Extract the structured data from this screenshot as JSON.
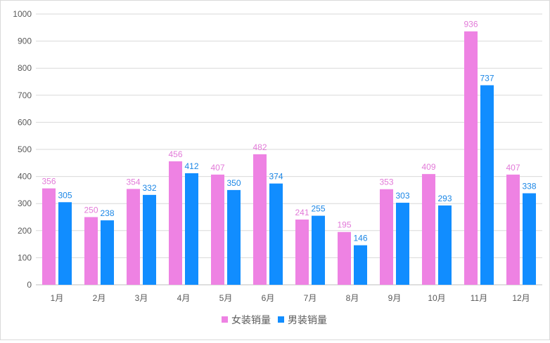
{
  "chart_data": {
    "type": "bar",
    "title": "",
    "xlabel": "",
    "ylabel": "",
    "categories": [
      "1月",
      "2月",
      "3月",
      "4月",
      "5月",
      "6月",
      "7月",
      "8月",
      "9月",
      "10月",
      "11月",
      "12月"
    ],
    "series": [
      {
        "name": "女装销量",
        "color": "#ee82e3",
        "values": [
          356,
          250,
          354,
          456,
          407,
          482,
          241,
          195,
          353,
          409,
          936,
          407
        ]
      },
      {
        "name": "男装销量",
        "color": "#118dff",
        "values": [
          305,
          238,
          332,
          412,
          350,
          374,
          255,
          146,
          303,
          293,
          737,
          338
        ]
      }
    ],
    "ylim": [
      0,
      1000
    ],
    "yticks": [
      0,
      100,
      200,
      300,
      400,
      500,
      600,
      700,
      800,
      900,
      1000
    ],
    "grid": true,
    "legend": "bottom",
    "data_labels": true
  }
}
